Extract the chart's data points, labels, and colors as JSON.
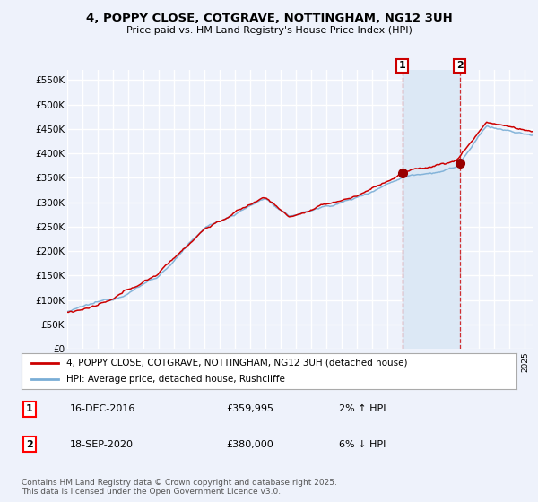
{
  "title": "4, POPPY CLOSE, COTGRAVE, NOTTINGHAM, NG12 3UH",
  "subtitle": "Price paid vs. HM Land Registry's House Price Index (HPI)",
  "ylim": [
    0,
    570000
  ],
  "yticks": [
    0,
    50000,
    100000,
    150000,
    200000,
    250000,
    300000,
    350000,
    400000,
    450000,
    500000,
    550000
  ],
  "ytick_labels": [
    "£0",
    "£50K",
    "£100K",
    "£150K",
    "£200K",
    "£250K",
    "£300K",
    "£350K",
    "£400K",
    "£450K",
    "£500K",
    "£550K"
  ],
  "xlim_start": 1995.0,
  "xlim_end": 2025.5,
  "background_color": "#eef2fb",
  "plot_bg_color": "#eef2fb",
  "grid_color": "#ffffff",
  "line1_color": "#cc0000",
  "line2_color": "#7aaed6",
  "sale1_x": 2016.958,
  "sale1_y": 359995,
  "sale2_x": 2020.722,
  "sale2_y": 380000,
  "shade_color": "#dce8f5",
  "vline_color": "#cc0000",
  "marker_color": "#990000",
  "legend_line1": "4, POPPY CLOSE, COTGRAVE, NOTTINGHAM, NG12 3UH (detached house)",
  "legend_line2": "HPI: Average price, detached house, Rushcliffe",
  "annotation1_num": "1",
  "annotation1_date": "16-DEC-2016",
  "annotation1_price": "£359,995",
  "annotation1_hpi": "2% ↑ HPI",
  "annotation2_num": "2",
  "annotation2_date": "18-SEP-2020",
  "annotation2_price": "£380,000",
  "annotation2_hpi": "6% ↓ HPI",
  "footer": "Contains HM Land Registry data © Crown copyright and database right 2025.\nThis data is licensed under the Open Government Licence v3.0."
}
